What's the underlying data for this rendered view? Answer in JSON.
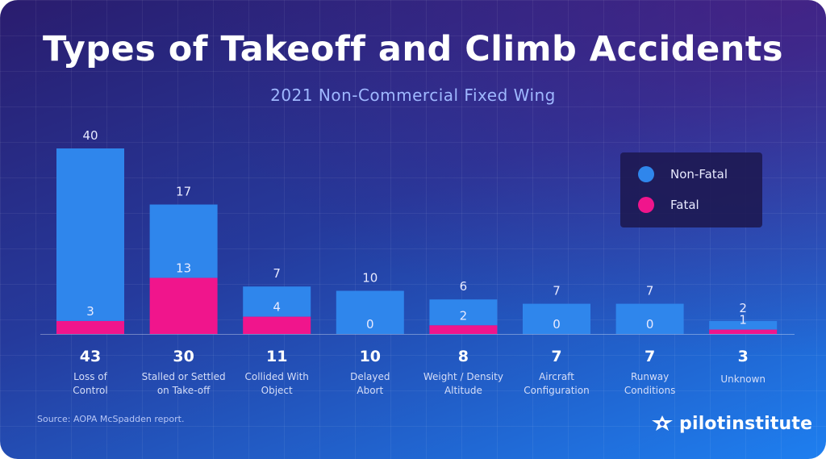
{
  "chart_data": {
    "type": "bar",
    "stacked": true,
    "title": "Types of Takeoff and Climb Accidents",
    "subtitle": "2021 Non-Commercial Fixed Wing",
    "categories": [
      [
        "Loss of",
        "Control"
      ],
      [
        "Stalled or Settled",
        "on Take-off"
      ],
      [
        "Collided With",
        "Object"
      ],
      [
        "Delayed",
        "Abort"
      ],
      [
        "Weight / Density",
        "Altitude"
      ],
      [
        "Aircraft",
        "Configuration"
      ],
      [
        "Runway",
        "Conditions"
      ],
      [
        "Unknown"
      ]
    ],
    "totals": [
      "43",
      "30",
      "11",
      "10",
      "8",
      "7",
      "7",
      "3"
    ],
    "series": [
      {
        "name": "Fatal",
        "color": "#f0158c",
        "values": [
          3,
          13,
          4,
          0,
          2,
          0,
          0,
          1
        ]
      },
      {
        "name": "Non-Fatal",
        "color": "#2f86ec",
        "values": [
          40,
          17,
          7,
          10,
          6,
          7,
          7,
          2
        ]
      }
    ],
    "ylim": [
      0,
      43
    ],
    "legend_position": "top-right"
  },
  "legend": {
    "items": [
      {
        "label": "Non-Fatal",
        "color": "#2f86ec"
      },
      {
        "label": "Fatal",
        "color": "#f0158c"
      }
    ]
  },
  "source": "Source: AOPA McSpadden report.",
  "brand": {
    "name": "pilotinstitute"
  }
}
